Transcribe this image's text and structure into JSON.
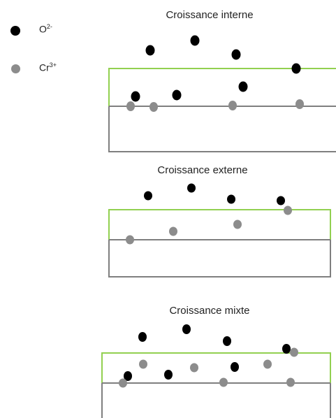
{
  "legend": {
    "oxygen": {
      "base": "O",
      "charge": "2-",
      "color": "#000000"
    },
    "chromium": {
      "base": "Cr",
      "charge": "3+",
      "color": "#8c8c8c"
    }
  },
  "colors": {
    "oxide_outline": "#92d050",
    "metal_outline": "#7f7f7f"
  },
  "panels": [
    {
      "title": "Croissance interne"
    },
    {
      "title": "Croissance externe"
    },
    {
      "title": "Croissance mixte"
    }
  ]
}
